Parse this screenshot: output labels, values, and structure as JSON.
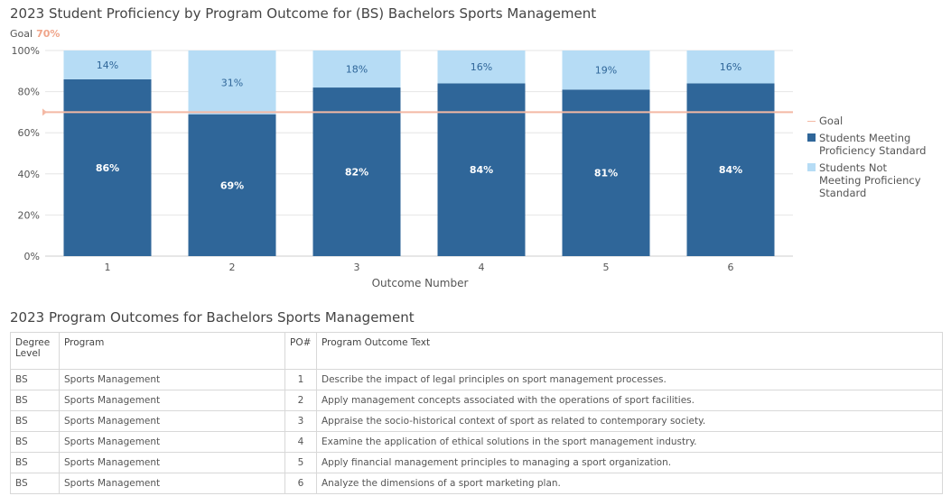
{
  "chart": {
    "title": "2023 Student Proficiency by Program Outcome for (BS) Bachelors Sports Management",
    "goal_label": "Goal",
    "goal_value_label": "70%"
  },
  "chart_data": {
    "type": "bar",
    "stacked": true,
    "title": "2023 Student Proficiency by Program Outcome for (BS) Bachelors Sports Management",
    "xlabel": "Outcome Number",
    "ylabel": "",
    "categories": [
      "1",
      "2",
      "3",
      "4",
      "5",
      "6"
    ],
    "series": [
      {
        "name": "Students Meeting Proficiency Standard",
        "values": [
          86,
          69,
          82,
          84,
          81,
          84
        ],
        "labels": [
          "86%",
          "69%",
          "82%",
          "84%",
          "81%",
          "84%"
        ],
        "color": "#2f6699"
      },
      {
        "name": "Students Not Meeting Proficiency Standard",
        "values": [
          14,
          31,
          18,
          16,
          19,
          16
        ],
        "labels": [
          "14%",
          "31%",
          "18%",
          "16%",
          "19%",
          "16%"
        ],
        "color": "#b6dcf5"
      }
    ],
    "goal": {
      "name": "Goal",
      "value": 70,
      "color": "#f4b9a5"
    },
    "ylim": [
      0,
      100
    ],
    "yticks": [
      0,
      20,
      40,
      60,
      80,
      100
    ],
    "ytick_labels": [
      "0%",
      "20%",
      "40%",
      "60%",
      "80%",
      "100%"
    ],
    "grid": true,
    "legend_position": "right"
  },
  "legend": {
    "goal": "Goal",
    "meeting": "Students Meeting Proficiency Standard",
    "not_meeting": "Students Not Meeting Proficiency Standard"
  },
  "table": {
    "title": "2023 Program Outcomes for Bachelors Sports Management",
    "headers": {
      "degree": "Degree Level",
      "program": "Program",
      "po": "PO#",
      "text": "Program Outcome Text"
    },
    "rows": [
      {
        "degree": "BS",
        "program": "Sports Management",
        "po": "1",
        "text": "Describe the impact of legal principles on sport management processes."
      },
      {
        "degree": "BS",
        "program": "Sports Management",
        "po": "2",
        "text": "Apply management concepts associated with the operations of sport facilities."
      },
      {
        "degree": "BS",
        "program": "Sports Management",
        "po": "3",
        "text": "Appraise the socio-historical context of sport as related to contemporary society."
      },
      {
        "degree": "BS",
        "program": "Sports Management",
        "po": "4",
        "text": "Examine the application of ethical solutions in the sport management industry."
      },
      {
        "degree": "BS",
        "program": "Sports Management",
        "po": "5",
        "text": "Apply financial management principles to managing a sport organization."
      },
      {
        "degree": "BS",
        "program": "Sports Management",
        "po": "6",
        "text": "Analyze the dimensions of a sport marketing plan."
      }
    ]
  }
}
